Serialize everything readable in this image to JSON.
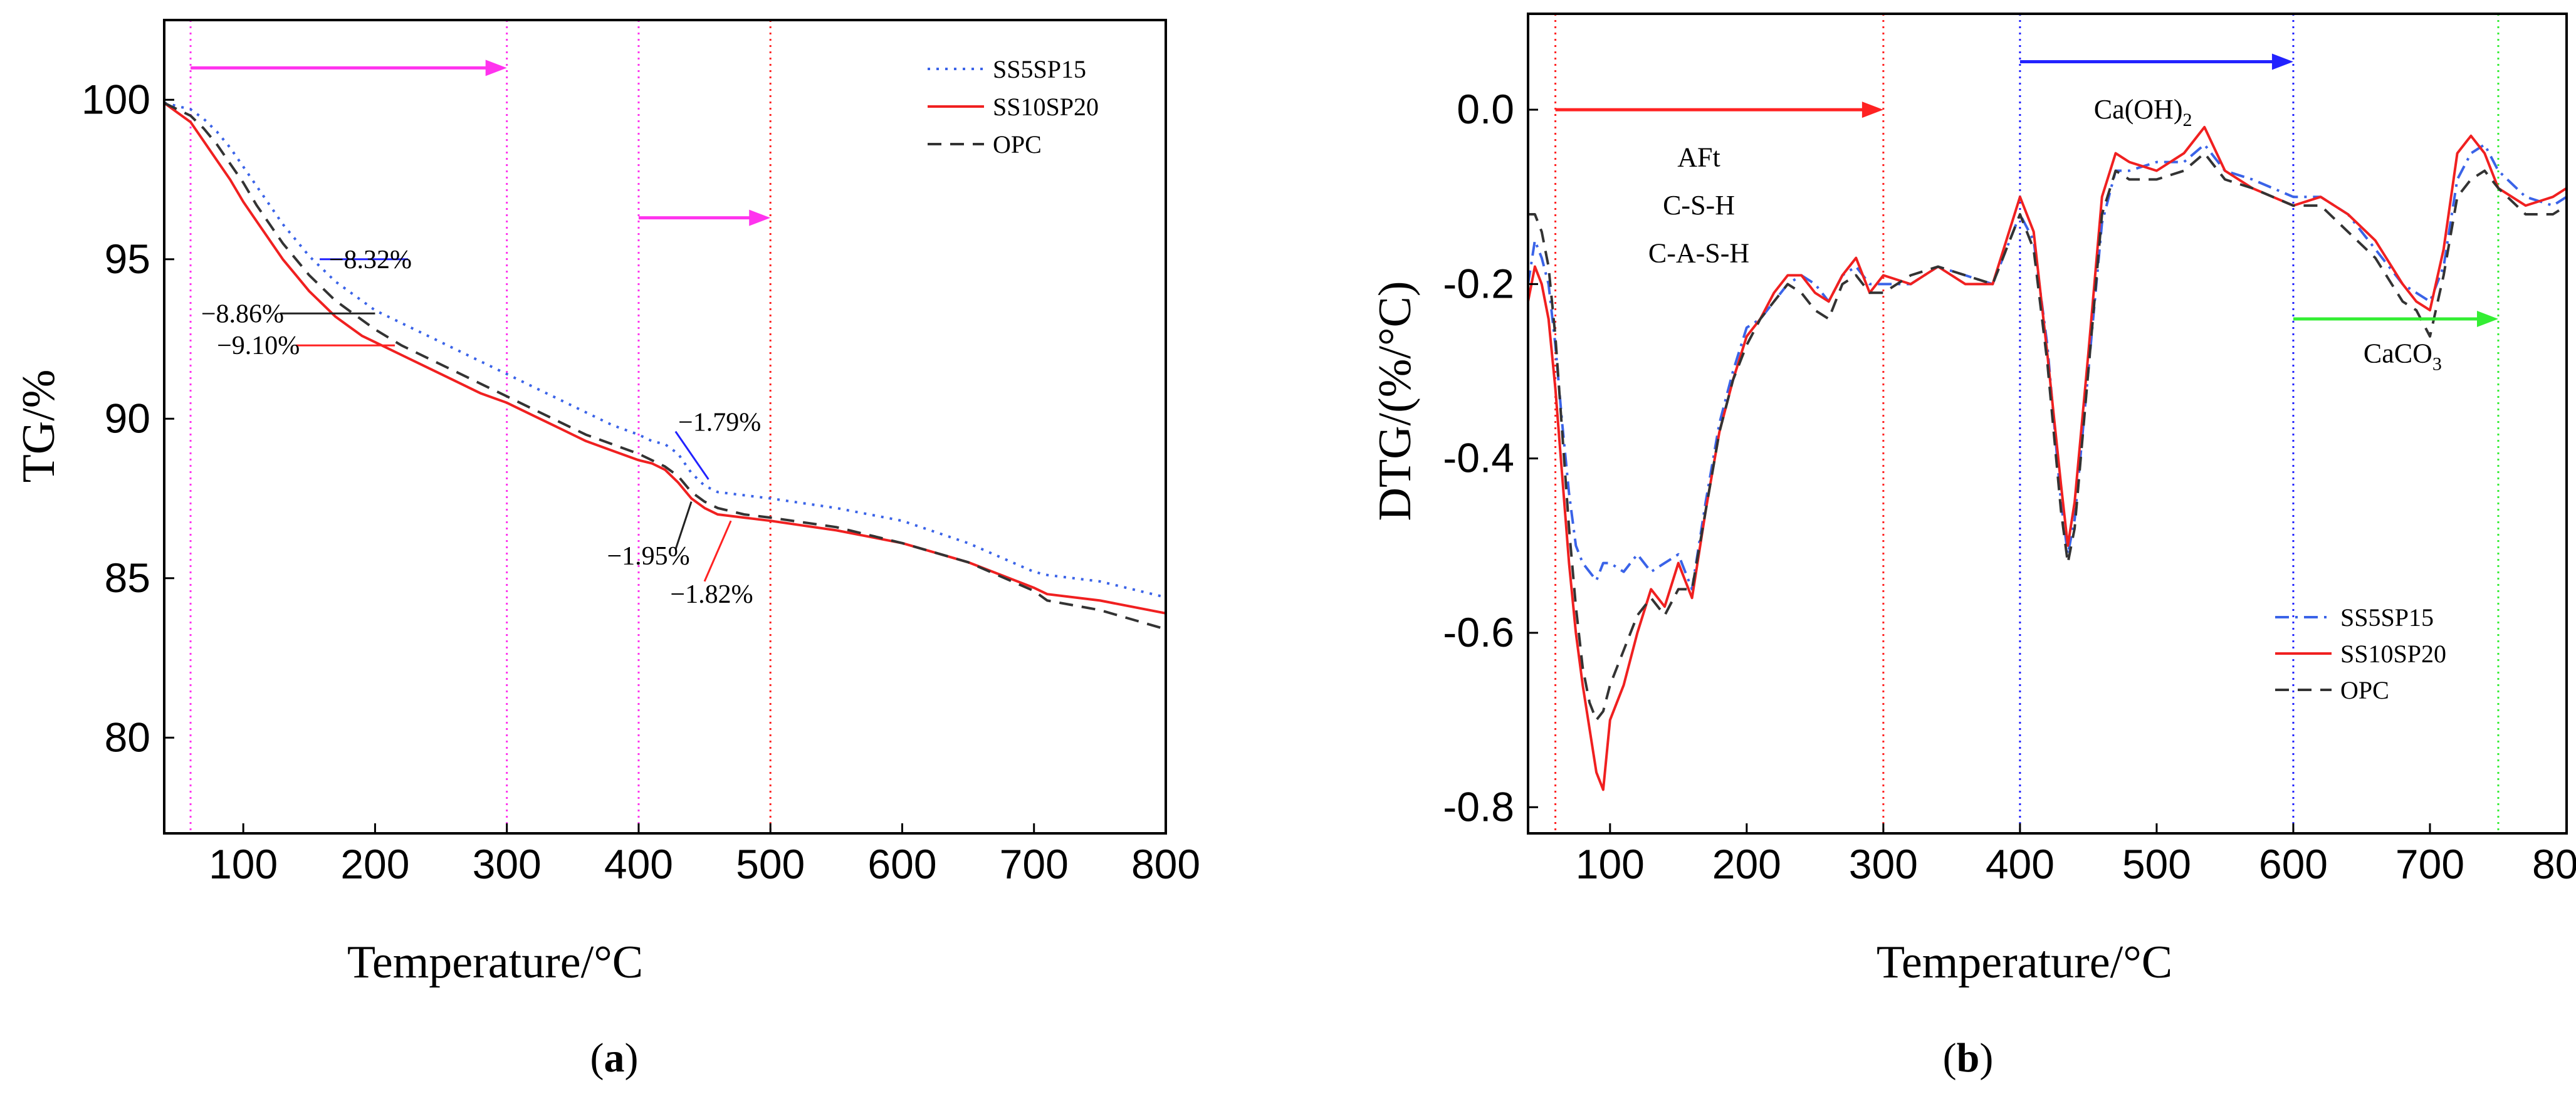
{
  "colors": {
    "ss5sp15": "#3a63e8",
    "ss10sp20": "#f02020",
    "opc": "#333333",
    "magenta": "#ff33ee",
    "red": "#ff2222",
    "blue": "#2222ff",
    "green": "#33ee33"
  },
  "panel_labels": {
    "a": {
      "open": "(",
      "letter": "a",
      "close": ")"
    },
    "b": {
      "open": "(",
      "letter": "b",
      "close": ")"
    }
  },
  "chart_data": [
    {
      "id": "a",
      "type": "line",
      "xlabel": "Temperature/°C",
      "ylabel": "TG/%",
      "xlim": [
        40,
        800
      ],
      "ylim": [
        77,
        102.5
      ],
      "xticks": [
        100,
        200,
        300,
        400,
        500,
        600,
        700,
        800
      ],
      "xtick_labels": [
        "100",
        "200",
        "300",
        "400",
        "500",
        "600",
        "700",
        "800"
      ],
      "yticks": [
        80,
        85,
        90,
        95,
        100
      ],
      "ytick_labels": [
        "80",
        "85",
        "90",
        "95",
        "100"
      ],
      "legend_position": "top-right",
      "vlines": [
        {
          "x": 60,
          "color": "magenta"
        },
        {
          "x": 300,
          "color": "magenta"
        },
        {
          "x": 400,
          "color": "magenta"
        },
        {
          "x": 500,
          "color": "red"
        }
      ],
      "arrows": [
        {
          "x1": 60,
          "x2": 300,
          "y": 101.0,
          "color": "magenta"
        },
        {
          "x1": 400,
          "x2": 500,
          "y": 96.3,
          "color": "magenta"
        }
      ],
      "annotations": [
        {
          "text": "−8.32%",
          "x": 165,
          "y": 95.0,
          "lx": 158,
          "ly": 95.0,
          "lcolor": "blue"
        },
        {
          "text": "−8.86%",
          "x": 68,
          "y": 93.3,
          "lx": 200,
          "ly": 93.3,
          "lcolor": "black"
        },
        {
          "text": "−9.10%",
          "x": 80,
          "y": 92.3,
          "lx": 215,
          "ly": 92.3,
          "lcolor": "red"
        },
        {
          "text": "−1.79%",
          "x": 430,
          "y": 89.9,
          "lx": 453,
          "ly": 88.1,
          "lcolor": "blue",
          "tx": 428,
          "ty": 89.6
        },
        {
          "text": "−1.95%",
          "x": 376,
          "y": 85.7,
          "lx": 440,
          "ly": 87.4,
          "lcolor": "black",
          "tx": 428,
          "ty": 85.9
        },
        {
          "text": "−1.82%",
          "x": 424,
          "y": 84.5,
          "lx": 470,
          "ly": 86.8,
          "lcolor": "red",
          "tx": 450,
          "ty": 84.9
        }
      ],
      "series": [
        {
          "name": "SS5SP15",
          "color": "ss5sp15",
          "dash": "dot",
          "x": [
            40,
            50,
            60,
            70,
            80,
            90,
            100,
            110,
            120,
            130,
            140,
            150,
            160,
            170,
            180,
            190,
            200,
            220,
            240,
            260,
            280,
            300,
            320,
            340,
            360,
            380,
            400,
            410,
            420,
            430,
            440,
            450,
            460,
            480,
            500,
            550,
            600,
            650,
            700,
            710,
            750,
            800
          ],
          "y": [
            99.9,
            99.8,
            99.7,
            99.4,
            99.0,
            98.5,
            97.9,
            97.3,
            96.7,
            96.1,
            95.6,
            95.1,
            94.7,
            94.3,
            94.0,
            93.7,
            93.4,
            93.0,
            92.6,
            92.2,
            91.8,
            91.4,
            91.0,
            90.6,
            90.2,
            89.8,
            89.5,
            89.3,
            89.2,
            88.9,
            88.3,
            87.9,
            87.7,
            87.6,
            87.5,
            87.2,
            86.8,
            86.1,
            85.2,
            85.1,
            84.9,
            84.4
          ]
        },
        {
          "name": "SS10SP20",
          "color": "ss10sp20",
          "dash": "solid",
          "x": [
            40,
            50,
            60,
            70,
            80,
            90,
            100,
            110,
            120,
            130,
            140,
            150,
            160,
            170,
            180,
            190,
            200,
            220,
            240,
            260,
            280,
            300,
            320,
            340,
            360,
            380,
            400,
            410,
            420,
            430,
            440,
            450,
            460,
            480,
            500,
            550,
            600,
            650,
            700,
            710,
            750,
            800
          ],
          "y": [
            99.9,
            99.6,
            99.3,
            98.7,
            98.1,
            97.5,
            96.8,
            96.2,
            95.6,
            95.0,
            94.5,
            94.0,
            93.6,
            93.2,
            92.9,
            92.6,
            92.4,
            92.0,
            91.6,
            91.2,
            90.8,
            90.5,
            90.1,
            89.7,
            89.3,
            89.0,
            88.7,
            88.6,
            88.4,
            88.0,
            87.5,
            87.2,
            87.0,
            86.9,
            86.8,
            86.5,
            86.1,
            85.5,
            84.7,
            84.5,
            84.3,
            83.9
          ]
        },
        {
          "name": "OPC",
          "color": "opc",
          "dash": "dash",
          "x": [
            40,
            50,
            60,
            70,
            80,
            90,
            100,
            110,
            120,
            130,
            140,
            150,
            160,
            170,
            180,
            190,
            200,
            220,
            240,
            260,
            280,
            300,
            320,
            340,
            360,
            380,
            400,
            410,
            420,
            430,
            440,
            450,
            460,
            480,
            500,
            550,
            600,
            650,
            700,
            710,
            750,
            800
          ],
          "y": [
            99.9,
            99.7,
            99.5,
            99.1,
            98.6,
            98.0,
            97.4,
            96.7,
            96.1,
            95.5,
            95.0,
            94.5,
            94.1,
            93.7,
            93.4,
            93.1,
            92.8,
            92.3,
            91.9,
            91.5,
            91.1,
            90.7,
            90.3,
            89.9,
            89.5,
            89.2,
            88.9,
            88.7,
            88.5,
            88.2,
            87.7,
            87.4,
            87.2,
            87.0,
            86.9,
            86.6,
            86.1,
            85.5,
            84.6,
            84.3,
            84.0,
            83.4
          ]
        }
      ]
    },
    {
      "id": "b",
      "type": "line",
      "xlabel": "Temperature/°C",
      "ylabel": "DTG/(%/°C)",
      "xlim": [
        40,
        800
      ],
      "ylim": [
        -0.83,
        0.11
      ],
      "xticks": [
        100,
        200,
        300,
        400,
        500,
        600,
        700,
        800
      ],
      "xtick_labels": [
        "100",
        "200",
        "300",
        "400",
        "500",
        "600",
        "700",
        "800"
      ],
      "yticks": [
        0.0,
        -0.2,
        -0.4,
        -0.6,
        -0.8
      ],
      "ytick_labels": [
        "0.0",
        "-0.2",
        "-0.4",
        "-0.6",
        "-0.8"
      ],
      "legend_position": "bottom-right",
      "vlines": [
        {
          "x": 60,
          "color": "red"
        },
        {
          "x": 300,
          "color": "red"
        },
        {
          "x": 400,
          "color": "blue"
        },
        {
          "x": 600,
          "color": "blue"
        },
        {
          "x": 750,
          "color": "green"
        }
      ],
      "arrows": [
        {
          "x1": 60,
          "x2": 300,
          "y": 0.0,
          "color": "red"
        },
        {
          "x1": 400,
          "x2": 600,
          "y": 0.055,
          "color": "blue"
        },
        {
          "x1": 600,
          "x2": 750,
          "y": -0.24,
          "color": "green"
        }
      ],
      "annotations": [
        {
          "text": "AFt",
          "x": 165,
          "y": -0.055
        },
        {
          "text": "C-S-H",
          "x": 165,
          "y": -0.11
        },
        {
          "text": "C-A-S-H",
          "x": 165,
          "y": -0.165
        },
        {
          "text": "Ca(OH)",
          "sub": "2",
          "x": 490,
          "y": 0.0
        },
        {
          "text": "CaCO",
          "sub": "3",
          "x": 680,
          "y": -0.28
        }
      ],
      "series": [
        {
          "name": "SS5SP15",
          "color": "ss5sp15",
          "dash": "dashdot",
          "x": [
            40,
            45,
            50,
            55,
            60,
            65,
            70,
            75,
            80,
            85,
            90,
            95,
            100,
            110,
            120,
            130,
            140,
            150,
            160,
            170,
            180,
            190,
            200,
            210,
            220,
            230,
            240,
            250,
            260,
            270,
            280,
            290,
            300,
            320,
            340,
            360,
            380,
            400,
            410,
            420,
            430,
            435,
            440,
            450,
            460,
            470,
            480,
            500,
            520,
            535,
            550,
            570,
            600,
            620,
            640,
            660,
            680,
            690,
            700,
            710,
            720,
            730,
            740,
            750,
            770,
            790,
            800
          ],
          "y": [
            -0.2,
            -0.15,
            -0.17,
            -0.2,
            -0.27,
            -0.36,
            -0.44,
            -0.5,
            -0.52,
            -0.53,
            -0.54,
            -0.52,
            -0.52,
            -0.53,
            -0.51,
            -0.53,
            -0.52,
            -0.51,
            -0.55,
            -0.45,
            -0.36,
            -0.3,
            -0.25,
            -0.24,
            -0.22,
            -0.2,
            -0.19,
            -0.2,
            -0.22,
            -0.19,
            -0.18,
            -0.2,
            -0.2,
            -0.2,
            -0.18,
            -0.19,
            -0.2,
            -0.12,
            -0.15,
            -0.27,
            -0.45,
            -0.51,
            -0.47,
            -0.3,
            -0.13,
            -0.07,
            -0.07,
            -0.06,
            -0.06,
            -0.04,
            -0.07,
            -0.08,
            -0.1,
            -0.1,
            -0.12,
            -0.16,
            -0.2,
            -0.21,
            -0.22,
            -0.18,
            -0.08,
            -0.05,
            -0.04,
            -0.07,
            -0.1,
            -0.11,
            -0.1
          ]
        },
        {
          "name": "SS10SP20",
          "color": "ss10sp20",
          "dash": "solid",
          "x": [
            40,
            45,
            50,
            55,
            60,
            65,
            70,
            75,
            80,
            85,
            90,
            95,
            100,
            110,
            120,
            130,
            140,
            150,
            160,
            170,
            180,
            190,
            200,
            210,
            220,
            230,
            240,
            250,
            260,
            270,
            280,
            290,
            300,
            320,
            340,
            360,
            380,
            400,
            410,
            420,
            430,
            435,
            440,
            450,
            460,
            470,
            480,
            500,
            520,
            535,
            550,
            570,
            600,
            620,
            640,
            660,
            680,
            690,
            700,
            710,
            720,
            730,
            740,
            750,
            770,
            790,
            800
          ],
          "y": [
            -0.22,
            -0.18,
            -0.2,
            -0.24,
            -0.32,
            -0.42,
            -0.52,
            -0.6,
            -0.66,
            -0.71,
            -0.76,
            -0.78,
            -0.7,
            -0.66,
            -0.6,
            -0.55,
            -0.57,
            -0.52,
            -0.56,
            -0.46,
            -0.37,
            -0.31,
            -0.26,
            -0.24,
            -0.21,
            -0.19,
            -0.19,
            -0.21,
            -0.22,
            -0.19,
            -0.17,
            -0.21,
            -0.19,
            -0.2,
            -0.18,
            -0.2,
            -0.2,
            -0.1,
            -0.14,
            -0.28,
            -0.43,
            -0.5,
            -0.45,
            -0.28,
            -0.1,
            -0.05,
            -0.06,
            -0.07,
            -0.05,
            -0.02,
            -0.07,
            -0.09,
            -0.11,
            -0.1,
            -0.12,
            -0.15,
            -0.2,
            -0.22,
            -0.23,
            -0.16,
            -0.05,
            -0.03,
            -0.05,
            -0.09,
            -0.11,
            -0.1,
            -0.09
          ]
        },
        {
          "name": "OPC",
          "color": "opc",
          "dash": "dash",
          "x": [
            40,
            45,
            50,
            55,
            60,
            65,
            70,
            75,
            80,
            85,
            90,
            95,
            100,
            110,
            120,
            130,
            140,
            150,
            160,
            170,
            180,
            190,
            200,
            210,
            220,
            230,
            240,
            250,
            260,
            270,
            280,
            290,
            300,
            320,
            340,
            360,
            380,
            400,
            410,
            420,
            430,
            435,
            440,
            450,
            460,
            470,
            480,
            500,
            520,
            535,
            550,
            570,
            600,
            620,
            640,
            660,
            680,
            690,
            700,
            710,
            720,
            730,
            740,
            750,
            770,
            790,
            800
          ],
          "y": [
            -0.12,
            -0.12,
            -0.14,
            -0.18,
            -0.26,
            -0.37,
            -0.48,
            -0.57,
            -0.64,
            -0.68,
            -0.7,
            -0.69,
            -0.66,
            -0.62,
            -0.58,
            -0.56,
            -0.58,
            -0.55,
            -0.55,
            -0.46,
            -0.37,
            -0.31,
            -0.27,
            -0.24,
            -0.22,
            -0.2,
            -0.21,
            -0.23,
            -0.24,
            -0.2,
            -0.19,
            -0.21,
            -0.21,
            -0.19,
            -0.18,
            -0.19,
            -0.2,
            -0.12,
            -0.16,
            -0.29,
            -0.46,
            -0.52,
            -0.48,
            -0.3,
            -0.12,
            -0.07,
            -0.08,
            -0.08,
            -0.07,
            -0.05,
            -0.08,
            -0.09,
            -0.11,
            -0.11,
            -0.14,
            -0.17,
            -0.22,
            -0.23,
            -0.26,
            -0.19,
            -0.1,
            -0.08,
            -0.07,
            -0.09,
            -0.12,
            -0.12,
            -0.11
          ]
        }
      ]
    }
  ]
}
